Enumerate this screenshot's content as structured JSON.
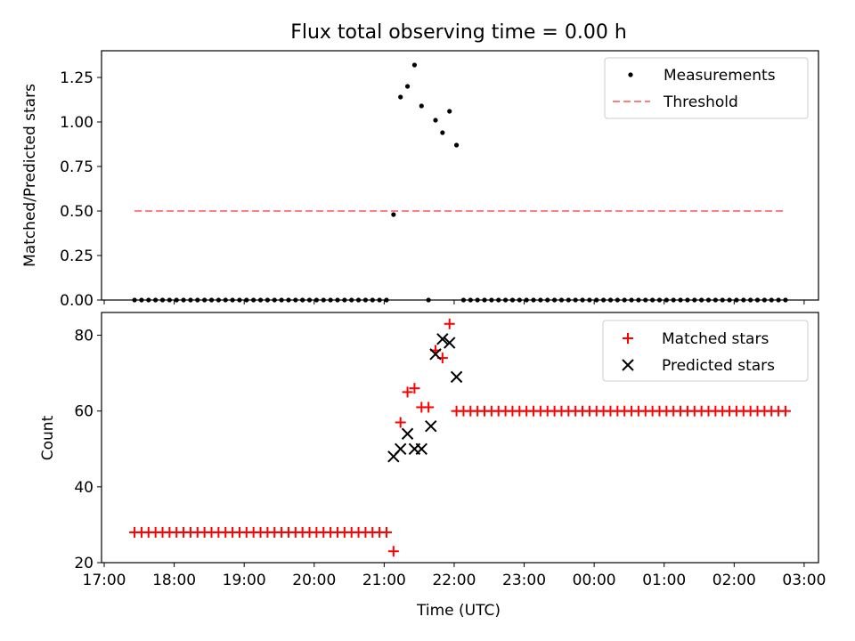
{
  "chart_data": [
    {
      "type": "scatter",
      "title": "Flux total observing time = 0.00 h",
      "ylabel": "Matched/Predicted stars",
      "xlim": [
        "17:00",
        "03:10"
      ],
      "ylim": [
        0,
        1.4
      ],
      "yticks": [
        "0.00",
        "0.25",
        "0.50",
        "0.75",
        "1.00",
        "1.25"
      ],
      "legend": "top-right",
      "series": [
        {
          "name": "Measurements",
          "color": "#000000",
          "marker": "dot",
          "x": [
            "17:26",
            "17:32",
            "17:38",
            "17:44",
            "17:50",
            "17:56",
            "18:02",
            "18:08",
            "18:14",
            "18:20",
            "18:26",
            "18:32",
            "18:38",
            "18:44",
            "18:50",
            "18:56",
            "19:02",
            "19:08",
            "19:14",
            "19:20",
            "19:26",
            "19:32",
            "19:38",
            "19:44",
            "19:50",
            "19:56",
            "20:02",
            "20:08",
            "20:14",
            "20:20",
            "20:26",
            "20:32",
            "20:38",
            "20:44",
            "20:50",
            "20:56",
            "21:02",
            "21:08",
            "21:14",
            "21:20",
            "21:26",
            "21:32",
            "21:38",
            "21:44",
            "21:50",
            "21:56",
            "22:02",
            "22:08",
            "22:14",
            "22:20",
            "22:26",
            "22:32",
            "22:38",
            "22:44",
            "22:50",
            "22:56",
            "23:02",
            "23:08",
            "23:14",
            "23:20",
            "23:26",
            "23:32",
            "23:38",
            "23:44",
            "23:50",
            "23:56",
            "00:02",
            "00:08",
            "00:14",
            "00:20",
            "00:26",
            "00:32",
            "00:38",
            "00:44",
            "00:50",
            "00:56",
            "01:02",
            "01:08",
            "01:14",
            "01:20",
            "01:26",
            "01:32",
            "01:38",
            "01:44",
            "01:50",
            "01:56",
            "02:02",
            "02:08",
            "02:14",
            "02:20",
            "02:26",
            "02:32",
            "02:38",
            "02:44"
          ],
          "y": [
            0,
            0,
            0,
            0,
            0,
            0,
            0,
            0,
            0,
            0,
            0,
            0,
            0,
            0,
            0,
            0,
            0,
            0,
            0,
            0,
            0,
            0,
            0,
            0,
            0,
            0,
            0,
            0,
            0,
            0,
            0,
            0,
            0,
            0,
            0,
            0,
            0,
            0.48,
            1.14,
            1.2,
            1.32,
            1.09,
            0,
            1.01,
            0.94,
            1.06,
            0.87,
            0,
            0,
            0,
            0,
            0,
            0,
            0,
            0,
            0,
            0,
            0,
            0,
            0,
            0,
            0,
            0,
            0,
            0,
            0,
            0,
            0,
            0,
            0,
            0,
            0,
            0,
            0,
            0,
            0,
            0,
            0,
            0,
            0,
            0,
            0,
            0,
            0,
            0,
            0,
            0,
            0,
            0,
            0,
            0,
            0,
            0,
            0
          ]
        },
        {
          "name": "Threshold",
          "color": "#ff7f7f",
          "line": "dashed",
          "x": [
            "17:26",
            "02:44"
          ],
          "y": [
            0.5,
            0.5
          ]
        }
      ]
    },
    {
      "type": "scatter",
      "xlabel": "Time (UTC)",
      "ylabel": "Count",
      "xlim": [
        "17:00",
        "03:10"
      ],
      "ylim": [
        20,
        86
      ],
      "yticks": [
        "20",
        "40",
        "60",
        "80"
      ],
      "xticks": [
        "17:00",
        "18:00",
        "19:00",
        "20:00",
        "21:00",
        "22:00",
        "23:00",
        "00:00",
        "01:00",
        "02:00",
        "03:00"
      ],
      "legend": "top-right",
      "series": [
        {
          "name": "Matched stars",
          "color": "#ff0000",
          "marker": "plus",
          "x": [
            "17:26",
            "17:32",
            "17:38",
            "17:44",
            "17:50",
            "17:56",
            "18:02",
            "18:08",
            "18:14",
            "18:20",
            "18:26",
            "18:32",
            "18:38",
            "18:44",
            "18:50",
            "18:56",
            "19:02",
            "19:08",
            "19:14",
            "19:20",
            "19:26",
            "19:32",
            "19:38",
            "19:44",
            "19:50",
            "19:56",
            "20:02",
            "20:08",
            "20:14",
            "20:20",
            "20:26",
            "20:32",
            "20:38",
            "20:44",
            "20:50",
            "20:56",
            "21:02",
            "21:08",
            "21:14",
            "21:20",
            "21:26",
            "21:32",
            "21:38",
            "21:44",
            "21:50",
            "21:56",
            "22:02",
            "22:08",
            "22:14",
            "22:20",
            "22:26",
            "22:32",
            "22:38",
            "22:44",
            "22:50",
            "22:56",
            "23:02",
            "23:08",
            "23:14",
            "23:20",
            "23:26",
            "23:32",
            "23:38",
            "23:44",
            "23:50",
            "23:56",
            "00:02",
            "00:08",
            "00:14",
            "00:20",
            "00:26",
            "00:32",
            "00:38",
            "00:44",
            "00:50",
            "00:56",
            "01:02",
            "01:08",
            "01:14",
            "01:20",
            "01:26",
            "01:32",
            "01:38",
            "01:44",
            "01:50",
            "01:56",
            "02:02",
            "02:08",
            "02:14",
            "02:20",
            "02:26",
            "02:32",
            "02:38",
            "02:44"
          ],
          "y": [
            28,
            28,
            28,
            28,
            28,
            28,
            28,
            28,
            28,
            28,
            28,
            28,
            28,
            28,
            28,
            28,
            28,
            28,
            28,
            28,
            28,
            28,
            28,
            28,
            28,
            28,
            28,
            28,
            28,
            28,
            28,
            28,
            28,
            28,
            28,
            28,
            28,
            23,
            57,
            65,
            66,
            61,
            61,
            76,
            74,
            83,
            60,
            60,
            60,
            60,
            60,
            60,
            60,
            60,
            60,
            60,
            60,
            60,
            60,
            60,
            60,
            60,
            60,
            60,
            60,
            60,
            60,
            60,
            60,
            60,
            60,
            60,
            60,
            60,
            60,
            60,
            60,
            60,
            60,
            60,
            60,
            60,
            60,
            60,
            60,
            60,
            60,
            60,
            60,
            60,
            60,
            60,
            60,
            60
          ]
        },
        {
          "name": "Predicted stars",
          "color": "#000000",
          "marker": "x",
          "x": [
            "21:08",
            "21:14",
            "21:20",
            "21:26",
            "21:32",
            "21:40",
            "21:44",
            "21:50",
            "21:56",
            "22:02"
          ],
          "y": [
            48,
            50,
            54,
            50,
            50,
            56,
            75,
            79,
            78,
            69
          ]
        }
      ]
    }
  ]
}
